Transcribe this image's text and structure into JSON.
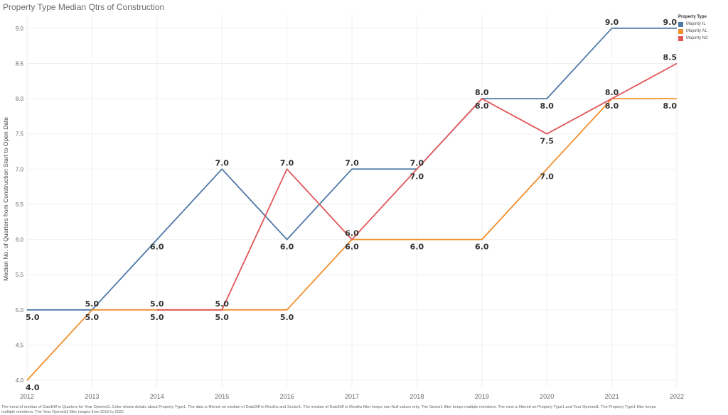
{
  "chart_data": {
    "type": "line",
    "title": "Property Type Median Qtrs of Construction",
    "ylabel": "Median No. of Quarters from Construction Start to Open Date",
    "xlabel": "",
    "x": [
      2012,
      2013,
      2014,
      2015,
      2016,
      2017,
      2018,
      2019,
      2020,
      2021,
      2022
    ],
    "ylim": [
      3.9,
      9.2
    ],
    "yticks": [
      4.0,
      4.5,
      5.0,
      5.5,
      6.0,
      6.5,
      7.0,
      7.5,
      8.0,
      8.5,
      9.0
    ],
    "ytick_labels": [
      "4.0",
      "4.5",
      "5.0",
      "5.5",
      "6.0",
      "6.5",
      "7.0",
      "7.5",
      "8.0",
      "8.5",
      "9.0"
    ],
    "grid": true,
    "legend_title": "Property Type",
    "legend_position": "top-right",
    "series": [
      {
        "name": "Majority IL",
        "color": "#4e79a7",
        "values": [
          5.0,
          5.0,
          6.0,
          7.0,
          6.0,
          7.0,
          7.0,
          8.0,
          8.0,
          9.0,
          9.0
        ],
        "label_pos": [
          "below",
          "above",
          "below",
          "above",
          "below",
          "above",
          "above",
          "above",
          "below",
          "above",
          "above"
        ]
      },
      {
        "name": "Majority AL",
        "color": "#f28e2b",
        "values": [
          4.0,
          5.0,
          5.0,
          5.0,
          5.0,
          6.0,
          6.0,
          6.0,
          7.0,
          8.0,
          8.0
        ],
        "label_pos": [
          "below",
          "below",
          "below",
          "below",
          "below",
          "below",
          "below",
          "below",
          "below",
          "below",
          "below"
        ]
      },
      {
        "name": "Majority NC",
        "color": "#e15759",
        "values": [
          null,
          null,
          5.0,
          5.0,
          7.0,
          6.0,
          7.0,
          8.0,
          7.5,
          8.0,
          8.5
        ],
        "label_pos": [
          null,
          null,
          "above",
          "above",
          "above",
          "above",
          "below",
          "below",
          "below",
          "above",
          "above"
        ]
      }
    ]
  },
  "footnote": "The trend of median of DateDiff in Quarters for Year Opened1.  Color shows details about Property Type1. The data is filtered on median of DateDiff in Months and Sector1. The median of DateDiff in Months filter keeps non-Null values only. The Sector1 filter keeps multiple members. The view is filtered on Property Type1 and Year Opened1. The Property Type1 filter keeps multiple members. The Year Opened1 filter ranges from 2012 to 2022."
}
